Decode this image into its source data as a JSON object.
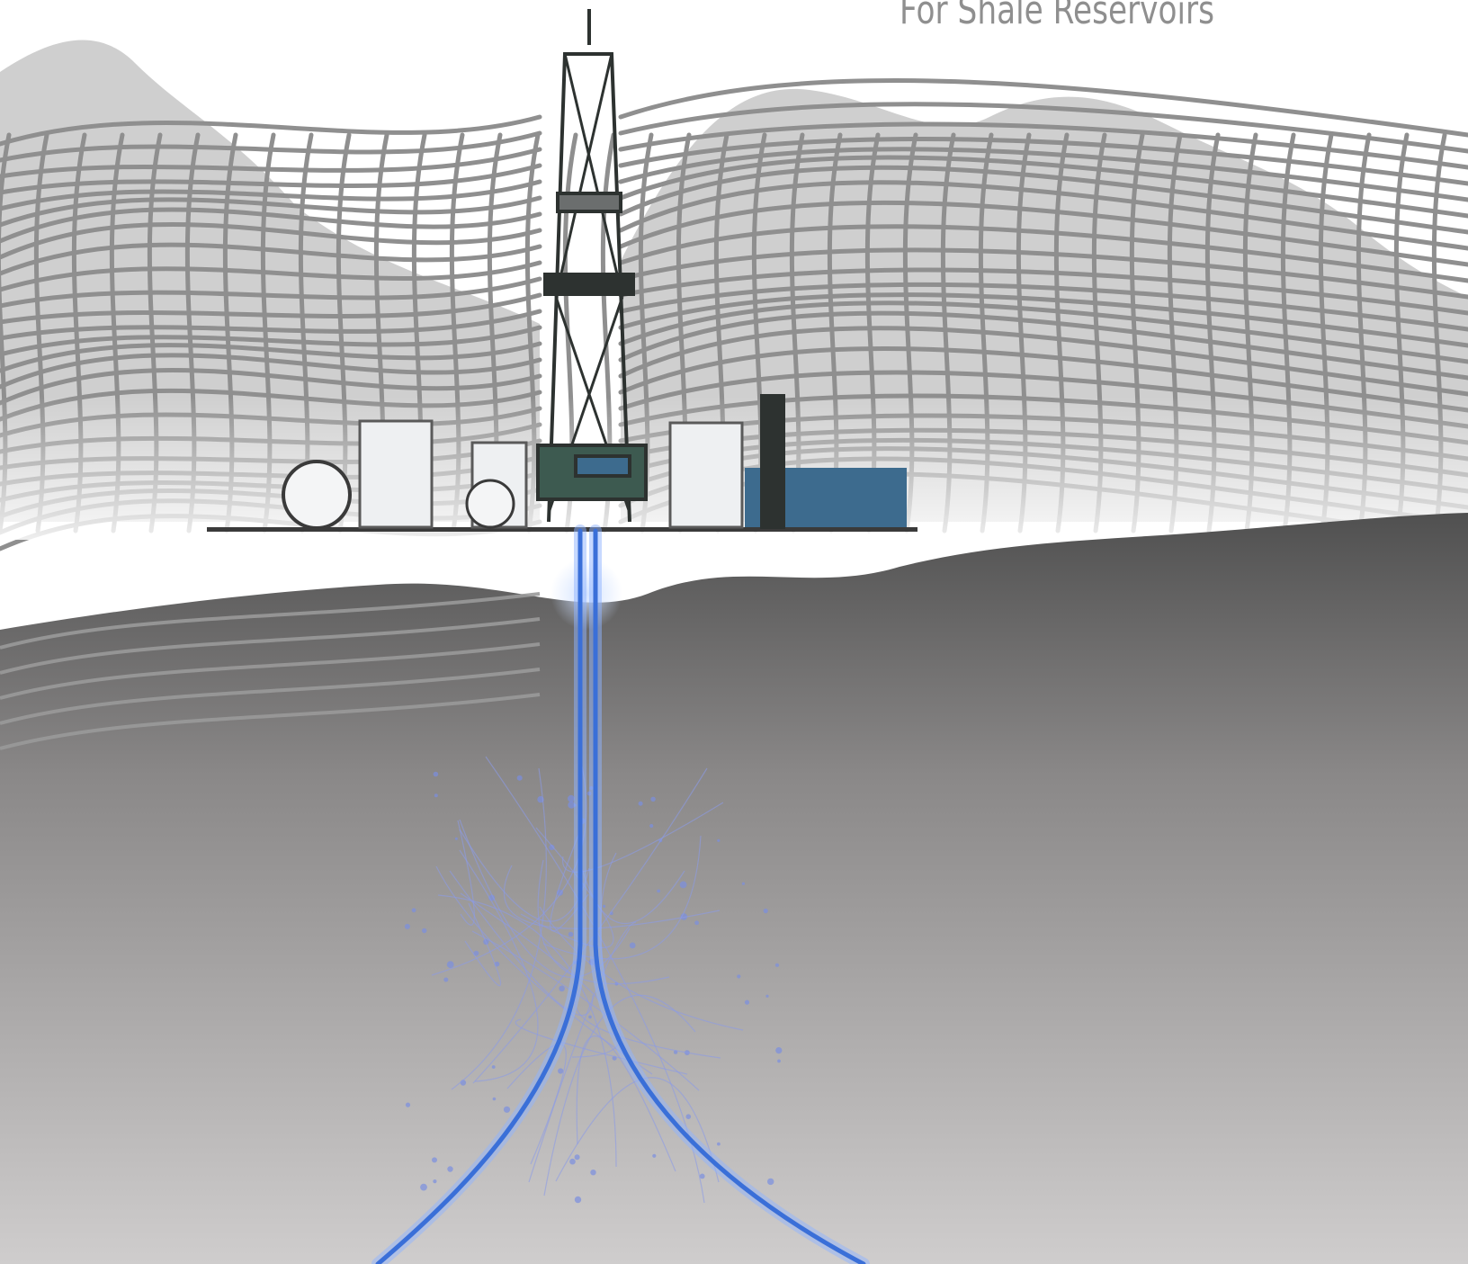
{
  "headline": "For Shale Reservoirs",
  "colors": {
    "mesh": "#8f8f8f",
    "mesh_dark": "#3a3a3a",
    "underground_top": "#5a5a5a",
    "underground_bottom": "#c9c9c9",
    "wellbore": "#3a6fd8",
    "wellbore_glow": "#8fb4ff",
    "rig_dark": "#2d3230",
    "tank_white": "#eef0f2",
    "building_blue": "#3d6b8e"
  },
  "icons": [
    "drilling-rig-icon",
    "storage-tank-icon",
    "spherical-tank-icon",
    "process-building-icon"
  ]
}
